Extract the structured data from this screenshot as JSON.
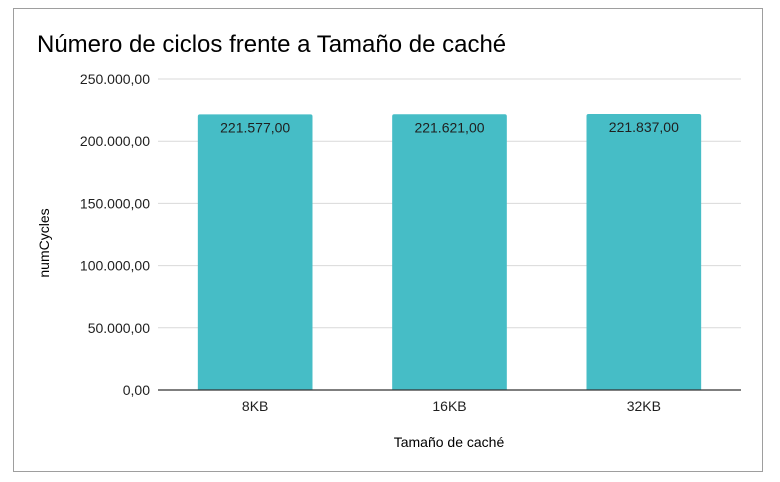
{
  "chart_data": {
    "type": "bar",
    "title": "Número de ciclos frente a Tamaño de caché",
    "xlabel": "Tamaño de caché",
    "ylabel": "numCycles",
    "categories": [
      "8KB",
      "16KB",
      "32KB"
    ],
    "values": [
      221577,
      221621,
      221837
    ],
    "value_labels": [
      "221.577,00",
      "221.621,00",
      "221.837,00"
    ],
    "ylim": [
      0,
      250000
    ],
    "yticks": [
      0,
      50000,
      100000,
      150000,
      200000,
      250000
    ],
    "ytick_labels": [
      "0,00",
      "50.000,00",
      "100.000,00",
      "150.000,00",
      "200.000,00",
      "250.000,00"
    ],
    "bar_color": "#46bdc6",
    "grid": true,
    "legend": "none"
  }
}
